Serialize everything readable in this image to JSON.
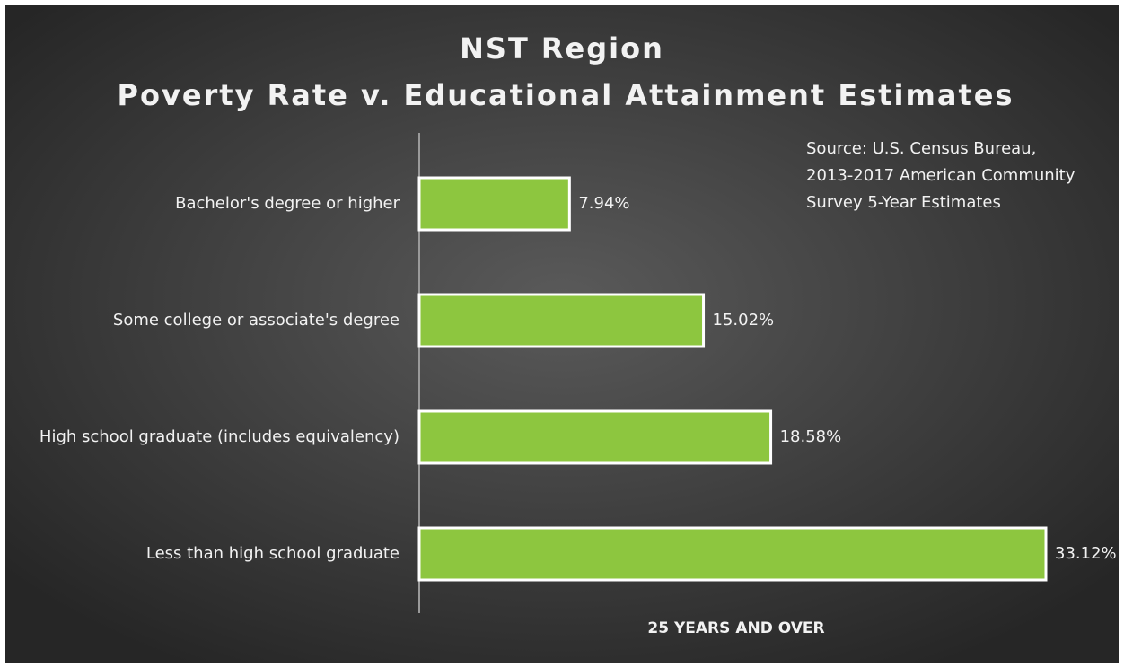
{
  "chart_data": {
    "type": "hbar",
    "title": [
      "NST Region",
      "Poverty Rate v. Educational Attainment Estimates"
    ],
    "annotation": [
      "Source: U.S. Census Bureau,",
      "2013-2017 American Community",
      "Survey 5-Year Estimates"
    ],
    "xlabel": "25 YEARS AND OVER",
    "categories": [
      "Bachelor's degree or higher",
      "Some college or associate's degree",
      "High school graduate (includes equivalency)",
      "Less than high school graduate"
    ],
    "values": [
      7.94,
      15.02,
      18.58,
      33.12
    ],
    "value_labels": [
      "7.94%",
      "15.02%",
      "18.58%",
      "33.12%"
    ],
    "color": "#8dc63f"
  }
}
